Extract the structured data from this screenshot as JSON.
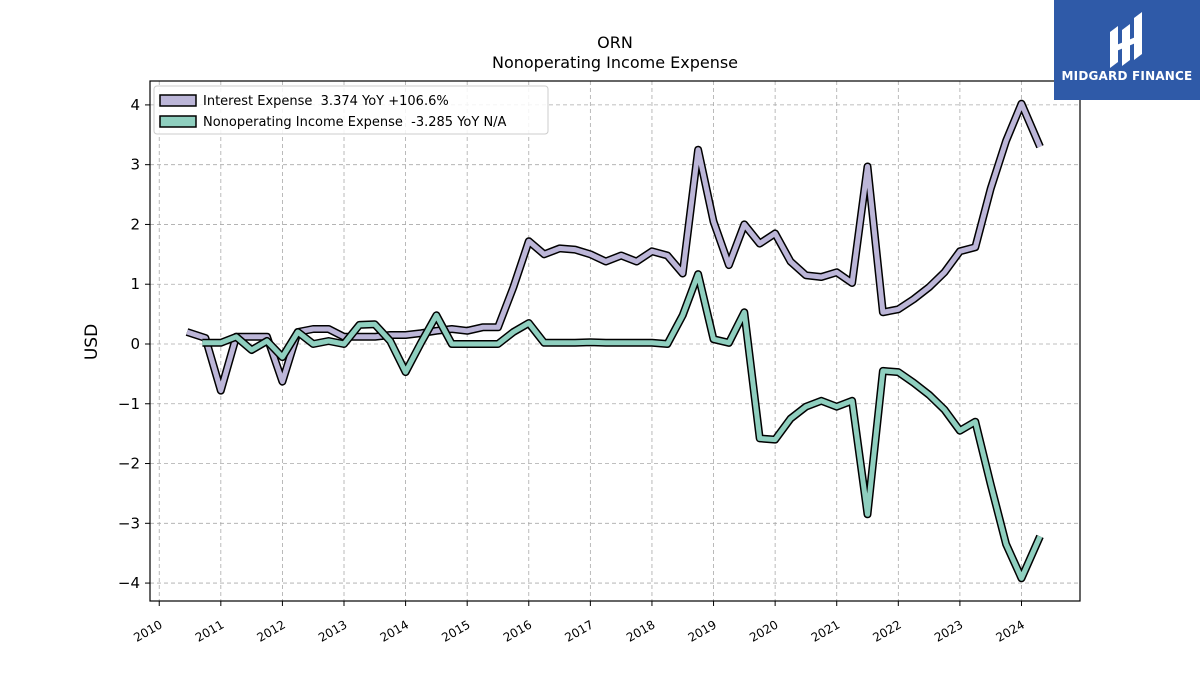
{
  "brand": {
    "name": "MIDGARD FINANCE",
    "bg_color": "#2f5aa8"
  },
  "chart_data": {
    "type": "line",
    "title": "ORN",
    "subtitle": "Nonoperating Income Expense",
    "xlabel": "",
    "ylabel": "USD",
    "ylim": [
      -4.3,
      4.4
    ],
    "xlim": [
      2009.85,
      2024.95
    ],
    "yticks": [
      4,
      3,
      2,
      1,
      0,
      -1,
      -2,
      -3,
      -4
    ],
    "ytick_labels": [
      "4",
      "3",
      "2",
      "1",
      "0",
      "−1",
      "−2",
      "−3",
      "−4"
    ],
    "xticks": [
      2010,
      2011,
      2012,
      2013,
      2014,
      2015,
      2016,
      2017,
      2018,
      2019,
      2020,
      2021,
      2022,
      2023,
      2024
    ],
    "xtick_labels": [
      "2010",
      "2011",
      "2012",
      "2013",
      "2014",
      "2015",
      "2016",
      "2017",
      "2018",
      "2019",
      "2020",
      "2021",
      "2022",
      "2023",
      "2024"
    ],
    "grid": true,
    "legend_position": "top-left",
    "series": [
      {
        "name": "Interest Expense",
        "legend_label": "Interest Expense  3.374 YoY +106.6%",
        "color": "#bcb6d8",
        "points": [
          [
            2010.45,
            0.2
          ],
          [
            2010.75,
            0.1
          ],
          [
            2011.0,
            -0.78
          ],
          [
            2011.25,
            0.12
          ],
          [
            2011.5,
            0.12
          ],
          [
            2011.75,
            0.12
          ],
          [
            2012.0,
            -0.63
          ],
          [
            2012.25,
            0.2
          ],
          [
            2012.5,
            0.25
          ],
          [
            2012.75,
            0.25
          ],
          [
            2013.0,
            0.12
          ],
          [
            2013.25,
            0.12
          ],
          [
            2013.5,
            0.12
          ],
          [
            2013.75,
            0.15
          ],
          [
            2014.0,
            0.15
          ],
          [
            2014.25,
            0.18
          ],
          [
            2014.5,
            0.22
          ],
          [
            2014.75,
            0.25
          ],
          [
            2015.0,
            0.22
          ],
          [
            2015.25,
            0.28
          ],
          [
            2015.5,
            0.28
          ],
          [
            2015.75,
            0.95
          ],
          [
            2016.0,
            1.72
          ],
          [
            2016.25,
            1.5
          ],
          [
            2016.5,
            1.6
          ],
          [
            2016.75,
            1.58
          ],
          [
            2017.0,
            1.5
          ],
          [
            2017.25,
            1.38
          ],
          [
            2017.5,
            1.48
          ],
          [
            2017.75,
            1.38
          ],
          [
            2018.0,
            1.55
          ],
          [
            2018.25,
            1.48
          ],
          [
            2018.5,
            1.18
          ],
          [
            2018.75,
            3.25
          ],
          [
            2019.0,
            2.05
          ],
          [
            2019.25,
            1.32
          ],
          [
            2019.5,
            2.0
          ],
          [
            2019.75,
            1.68
          ],
          [
            2020.0,
            1.85
          ],
          [
            2020.25,
            1.38
          ],
          [
            2020.5,
            1.15
          ],
          [
            2020.75,
            1.12
          ],
          [
            2021.0,
            1.2
          ],
          [
            2021.25,
            1.02
          ],
          [
            2021.5,
            2.97
          ],
          [
            2021.75,
            0.53
          ],
          [
            2022.0,
            0.58
          ],
          [
            2022.25,
            0.75
          ],
          [
            2022.5,
            0.95
          ],
          [
            2022.75,
            1.2
          ],
          [
            2023.0,
            1.55
          ],
          [
            2023.25,
            1.62
          ],
          [
            2023.5,
            2.6
          ],
          [
            2023.75,
            3.4
          ],
          [
            2024.0,
            4.02
          ],
          [
            2024.3,
            3.3
          ]
        ]
      },
      {
        "name": "Nonoperating Income Expense",
        "legend_label": "Nonoperating Income Expense  -3.285 YoY N/A",
        "color": "#8fcfbf",
        "points": [
          [
            2010.7,
            0.02
          ],
          [
            2011.0,
            0.02
          ],
          [
            2011.25,
            0.12
          ],
          [
            2011.5,
            -0.1
          ],
          [
            2011.75,
            0.05
          ],
          [
            2012.0,
            -0.22
          ],
          [
            2012.25,
            0.2
          ],
          [
            2012.5,
            0.0
          ],
          [
            2012.75,
            0.05
          ],
          [
            2013.0,
            0.0
          ],
          [
            2013.25,
            0.32
          ],
          [
            2013.5,
            0.33
          ],
          [
            2013.75,
            0.05
          ],
          [
            2014.0,
            -0.47
          ],
          [
            2014.25,
            0.02
          ],
          [
            2014.5,
            0.48
          ],
          [
            2014.75,
            0.0
          ],
          [
            2015.0,
            0.0
          ],
          [
            2015.25,
            0.0
          ],
          [
            2015.5,
            0.0
          ],
          [
            2015.75,
            0.2
          ],
          [
            2016.0,
            0.35
          ],
          [
            2016.25,
            0.02
          ],
          [
            2016.5,
            0.02
          ],
          [
            2016.75,
            0.02
          ],
          [
            2017.0,
            0.03
          ],
          [
            2017.25,
            0.02
          ],
          [
            2017.5,
            0.02
          ],
          [
            2017.75,
            0.02
          ],
          [
            2018.0,
            0.02
          ],
          [
            2018.25,
            0.0
          ],
          [
            2018.5,
            0.48
          ],
          [
            2018.75,
            1.17
          ],
          [
            2019.0,
            0.08
          ],
          [
            2019.25,
            0.02
          ],
          [
            2019.5,
            0.53
          ],
          [
            2019.75,
            -1.58
          ],
          [
            2020.0,
            -1.6
          ],
          [
            2020.25,
            -1.25
          ],
          [
            2020.5,
            -1.05
          ],
          [
            2020.75,
            -0.95
          ],
          [
            2021.0,
            -1.05
          ],
          [
            2021.25,
            -0.95
          ],
          [
            2021.5,
            -2.85
          ],
          [
            2021.75,
            -0.45
          ],
          [
            2022.0,
            -0.47
          ],
          [
            2022.25,
            -0.65
          ],
          [
            2022.5,
            -0.85
          ],
          [
            2022.75,
            -1.1
          ],
          [
            2023.0,
            -1.45
          ],
          [
            2023.25,
            -1.3
          ],
          [
            2023.5,
            -2.35
          ],
          [
            2023.75,
            -3.35
          ],
          [
            2024.0,
            -3.92
          ],
          [
            2024.3,
            -3.22
          ]
        ]
      }
    ]
  }
}
